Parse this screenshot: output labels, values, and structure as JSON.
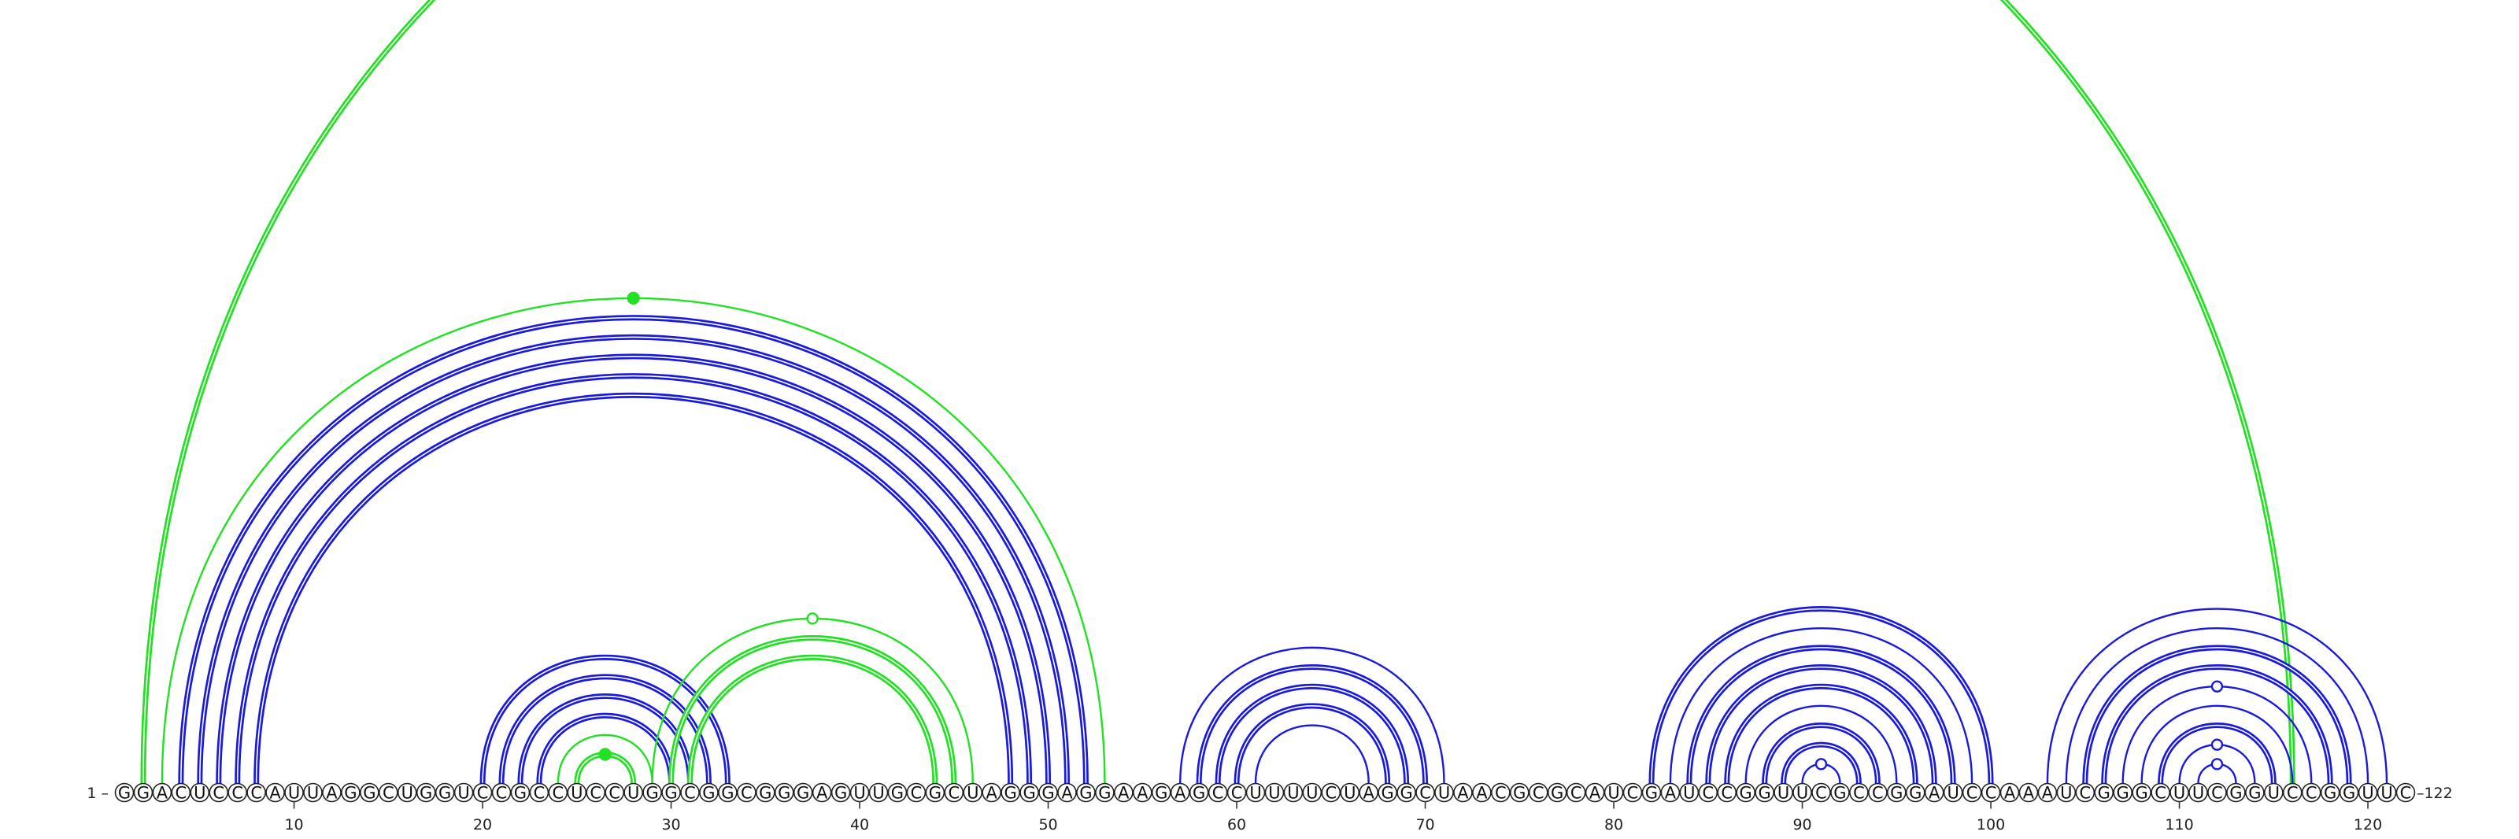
{
  "diagram": {
    "sequence": "GGACUCCCAUUAGGCUGGUCCGCCUCCUGGCGGCGGGAGUUGCGCUAGGGAGGAAGAGCCUUUUCUAGGCUAACGCGCAUCGAUCCGGUUCGCCGGAUCCAAAUCGGGCUUCGGUCCGGUUC",
    "start_label": "1 –",
    "end_label": "–122",
    "ticks": [
      10,
      20,
      30,
      40,
      50,
      60,
      70,
      80,
      90,
      100,
      110,
      120
    ],
    "colors": {
      "blue": "#1a1adf",
      "green": "#22e022"
    },
    "arcs": [
      {
        "i": 2,
        "j": 116,
        "color": "green",
        "double": true
      },
      {
        "i": 3,
        "j": 53,
        "color": "green",
        "double": false,
        "mark": "filled"
      },
      {
        "i": 4,
        "j": 52,
        "color": "blue",
        "double": true
      },
      {
        "i": 5,
        "j": 51,
        "color": "blue",
        "double": true
      },
      {
        "i": 6,
        "j": 50,
        "color": "blue",
        "double": true
      },
      {
        "i": 7,
        "j": 49,
        "color": "blue",
        "double": true
      },
      {
        "i": 8,
        "j": 48,
        "color": "blue",
        "double": true
      },
      {
        "i": 20,
        "j": 33,
        "color": "blue",
        "double": true
      },
      {
        "i": 21,
        "j": 32,
        "color": "blue",
        "double": true
      },
      {
        "i": 22,
        "j": 31,
        "color": "blue",
        "double": true
      },
      {
        "i": 23,
        "j": 30,
        "color": "blue",
        "double": true
      },
      {
        "i": 24,
        "j": 29,
        "color": "green",
        "double": false
      },
      {
        "i": 25,
        "j": 28,
        "color": "green",
        "double": true,
        "mark": "filled"
      },
      {
        "i": 29,
        "j": 46,
        "color": "green",
        "double": false,
        "mark": "open"
      },
      {
        "i": 30,
        "j": 45,
        "color": "green",
        "double": true
      },
      {
        "i": 31,
        "j": 44,
        "color": "green",
        "double": true
      },
      {
        "i": 57,
        "j": 71,
        "color": "blue",
        "double": false
      },
      {
        "i": 58,
        "j": 70,
        "color": "blue",
        "double": true
      },
      {
        "i": 59,
        "j": 69,
        "color": "blue",
        "double": true
      },
      {
        "i": 60,
        "j": 68,
        "color": "blue",
        "double": true
      },
      {
        "i": 61,
        "j": 67,
        "color": "blue",
        "double": false
      },
      {
        "i": 82,
        "j": 100,
        "color": "blue",
        "double": true
      },
      {
        "i": 83,
        "j": 99,
        "color": "blue",
        "double": false
      },
      {
        "i": 84,
        "j": 98,
        "color": "blue",
        "double": true
      },
      {
        "i": 85,
        "j": 97,
        "color": "blue",
        "double": true
      },
      {
        "i": 86,
        "j": 96,
        "color": "blue",
        "double": true
      },
      {
        "i": 87,
        "j": 95,
        "color": "blue",
        "double": false
      },
      {
        "i": 88,
        "j": 94,
        "color": "blue",
        "double": true
      },
      {
        "i": 89,
        "j": 93,
        "color": "blue",
        "double": true
      },
      {
        "i": 90,
        "j": 92,
        "color": "blue",
        "double": false,
        "mark": "open"
      },
      {
        "i": 103,
        "j": 121,
        "color": "blue",
        "double": false
      },
      {
        "i": 104,
        "j": 120,
        "color": "blue",
        "double": false
      },
      {
        "i": 105,
        "j": 119,
        "color": "blue",
        "double": true
      },
      {
        "i": 106,
        "j": 118,
        "color": "blue",
        "double": true
      },
      {
        "i": 107,
        "j": 117,
        "color": "blue",
        "double": false,
        "mark": "open"
      },
      {
        "i": 108,
        "j": 116,
        "color": "blue",
        "double": false
      },
      {
        "i": 109,
        "j": 115,
        "color": "blue",
        "double": true
      },
      {
        "i": 110,
        "j": 114,
        "color": "blue",
        "double": false,
        "mark": "open"
      },
      {
        "i": 111,
        "j": 113,
        "color": "blue",
        "double": false,
        "mark": "open"
      }
    ]
  }
}
